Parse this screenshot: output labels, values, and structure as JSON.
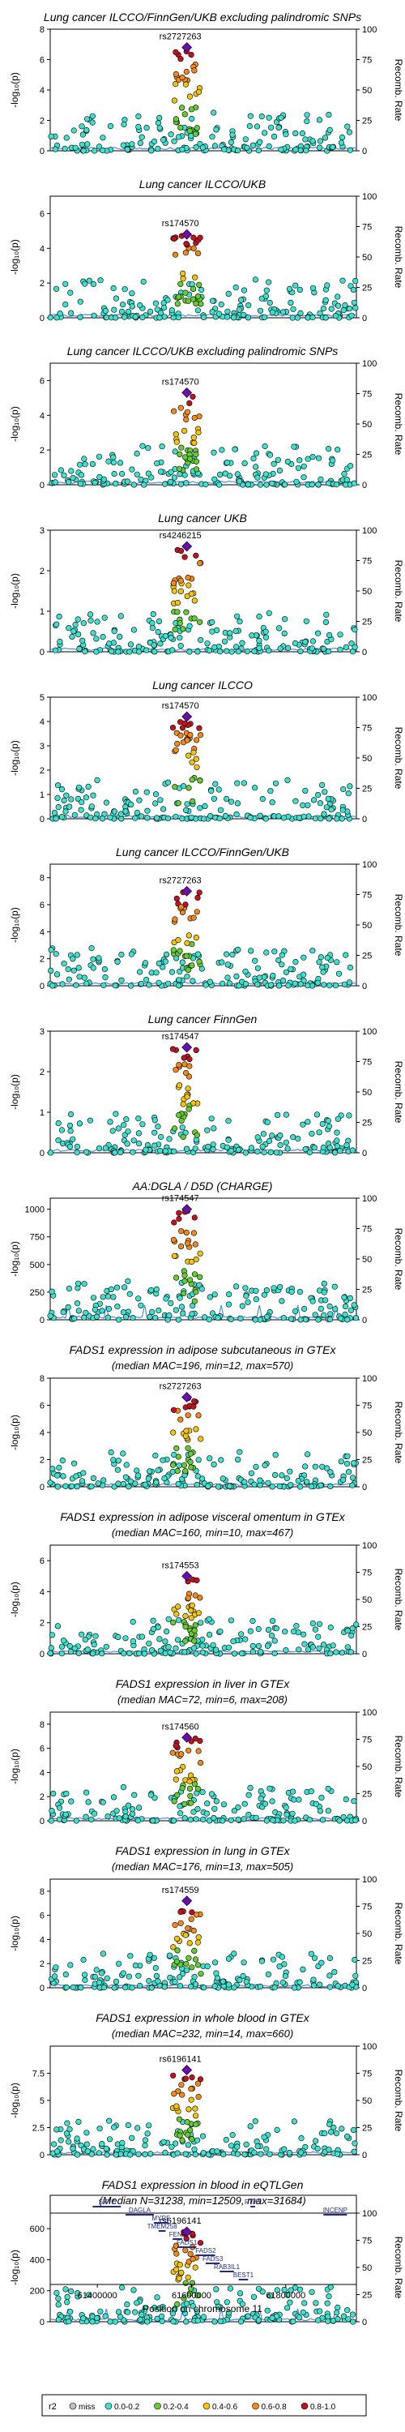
{
  "chart_data": {
    "type": "scatter",
    "x_axis": {
      "label": "Position on chromosome 11",
      "ticks": [
        61400000,
        61600000,
        61800000
      ],
      "xlim": [
        61300000,
        61950000
      ]
    },
    "right_axis": {
      "label": "Recomb. Rate",
      "ticks": [
        0,
        25,
        50,
        75,
        100
      ],
      "ylim": [
        0,
        100
      ]
    },
    "y_axis_label": "-log₁₀(p)",
    "legend": {
      "title": "r2",
      "placement": "bottom",
      "entries": [
        {
          "label": "miss",
          "color": "#bdbdbd"
        },
        {
          "label": "0.0-0.2",
          "color": "#40e0d0"
        },
        {
          "label": "0.2-0.4",
          "color": "#66cc33"
        },
        {
          "label": "0.4-0.6",
          "color": "#f2c40c"
        },
        {
          "label": "0.6-0.8",
          "color": "#f28a1b"
        },
        {
          "label": "0.8-1.0",
          "color": "#c1121f"
        }
      ]
    },
    "colors": {
      "lead": "#6a0dad",
      "recomb_line": "#4a90e2",
      "frame": "#000000"
    },
    "panels": [
      {
        "title": "Lung cancer ILCCO/FinnGen/UKB excluding palindromic SNPs",
        "subtitle": "",
        "lead": "rs2727263",
        "lead_value": 6.8,
        "ylim": [
          0,
          8
        ],
        "ticks": [
          0,
          2,
          4,
          6,
          8
        ],
        "seed": 1,
        "recomb_spikes": false
      },
      {
        "title": "Lung cancer ILCCO/UKB",
        "subtitle": "",
        "lead": "rs174570",
        "lead_value": 4.8,
        "ylim": [
          0,
          7
        ],
        "ticks": [
          0,
          2,
          4,
          6
        ],
        "seed": 2,
        "recomb_spikes": false
      },
      {
        "title": "Lung cancer ILCCO/UKB excluding palindromic SNPs",
        "subtitle": "",
        "lead": "rs174570",
        "lead_value": 5.3,
        "ylim": [
          0,
          7
        ],
        "ticks": [
          0,
          2,
          4,
          6
        ],
        "seed": 3,
        "recomb_spikes": false
      },
      {
        "title": "Lung cancer UKB",
        "subtitle": "",
        "lead": "rs4246215",
        "lead_value": 2.6,
        "ylim": [
          0,
          3
        ],
        "ticks": [
          0,
          1,
          2,
          3
        ],
        "seed": 4,
        "recomb_spikes": false
      },
      {
        "title": "Lung cancer ILCCO",
        "subtitle": "",
        "lead": "rs174570",
        "lead_value": 4.2,
        "ylim": [
          0,
          5
        ],
        "ticks": [
          0,
          1,
          2,
          3,
          4,
          5
        ],
        "seed": 5,
        "recomb_spikes": false
      },
      {
        "title": "Lung cancer ILCCO/FinnGen/UKB",
        "subtitle": "",
        "lead": "rs2727263",
        "lead_value": 7.0,
        "ylim": [
          0,
          9
        ],
        "ticks": [
          0,
          2,
          4,
          6,
          8
        ],
        "seed": 6,
        "recomb_spikes": false
      },
      {
        "title": "Lung cancer FinnGen",
        "subtitle": "",
        "lead": "rs174547",
        "lead_value": 2.6,
        "ylim": [
          0,
          3
        ],
        "ticks": [
          0,
          1,
          2,
          3
        ],
        "seed": 7,
        "recomb_spikes": false
      },
      {
        "title": "AA:DGLA / D5D (CHARGE)",
        "subtitle": "",
        "lead": "rs174547",
        "lead_value": 1000,
        "ylim": [
          0,
          1100
        ],
        "ticks": [
          0,
          250,
          500,
          750,
          1000
        ],
        "seed": 8,
        "recomb_spikes": true
      },
      {
        "title": "FADS1 expression in adipose subcutaneous in GTEx",
        "subtitle": "(median MAC=196, min=12, max=570)",
        "lead": "rs2727263",
        "lead_value": 6.6,
        "ylim": [
          0,
          8
        ],
        "ticks": [
          0,
          2,
          4,
          6,
          8
        ],
        "seed": 9,
        "recomb_spikes": false
      },
      {
        "title": "FADS1 expression in adipose visceral omentum in GTEx",
        "subtitle": "(median MAC=160, min=10, max=467)",
        "lead": "rs174553",
        "lead_value": 5.0,
        "ylim": [
          0,
          7
        ],
        "ticks": [
          0,
          2,
          4,
          6
        ],
        "seed": 10,
        "recomb_spikes": false
      },
      {
        "title": "FADS1 expression in liver in GTEx",
        "subtitle": "(median MAC=72, min=6, max=208)",
        "lead": "rs174560",
        "lead_value": 6.9,
        "ylim": [
          0,
          9
        ],
        "ticks": [
          0,
          2,
          4,
          6,
          8
        ],
        "seed": 11,
        "recomb_spikes": false
      },
      {
        "title": "FADS1 expression in lung in GTEx",
        "subtitle": "(median MAC=176, min=13, max=505)",
        "lead": "rs174559",
        "lead_value": 7.2,
        "ylim": [
          0,
          9
        ],
        "ticks": [
          0,
          2,
          4,
          6,
          8
        ],
        "seed": 12,
        "recomb_spikes": false
      },
      {
        "title": "FADS1 expression in whole blood in GTEx",
        "subtitle": "(median MAC=232, min=14, max=660)",
        "lead": "rs6196141",
        "lead_value": 7.8,
        "ylim": [
          0,
          10
        ],
        "ticks": [
          0.0,
          2.5,
          5.0,
          7.5
        ],
        "seed": 13,
        "recomb_spikes": false
      },
      {
        "title": "FADS1 expression in blood in eQTLGen",
        "subtitle": "(Median N=31238, min=12509, max=31684)",
        "lead": "rs6196141",
        "lead_value": 580,
        "ylim": [
          0,
          700
        ],
        "ticks": [
          0,
          200,
          400,
          600
        ],
        "seed": 14,
        "recomb_spikes": true
      }
    ],
    "genes": [
      {
        "name": "SYT7",
        "start": 61390000,
        "end": 61450000,
        "row": 0
      },
      {
        "name": "DAGLA",
        "start": 61460000,
        "end": 61520000,
        "row": 1
      },
      {
        "name": "MYRF",
        "start": 61520000,
        "end": 61550000,
        "row": 2
      },
      {
        "name": "TMEM258",
        "start": 61530000,
        "end": 61545000,
        "row": 3
      },
      {
        "name": "FEN1",
        "start": 61560000,
        "end": 61580000,
        "row": 4
      },
      {
        "name": "FADS1",
        "start": 61570000,
        "end": 61610000,
        "row": 5
      },
      {
        "name": "FADS2",
        "start": 61610000,
        "end": 61650000,
        "row": 6
      },
      {
        "name": "FADS3",
        "start": 61630000,
        "end": 61660000,
        "row": 7
      },
      {
        "name": "RAB3IL1",
        "start": 61660000,
        "end": 61690000,
        "row": 8
      },
      {
        "name": "BEST1",
        "start": 61700000,
        "end": 61720000,
        "row": 9
      },
      {
        "name": "FTH1",
        "start": 61725000,
        "end": 61735000,
        "row": 0
      },
      {
        "name": "INCENP",
        "start": 61880000,
        "end": 61930000,
        "row": 1
      }
    ]
  }
}
